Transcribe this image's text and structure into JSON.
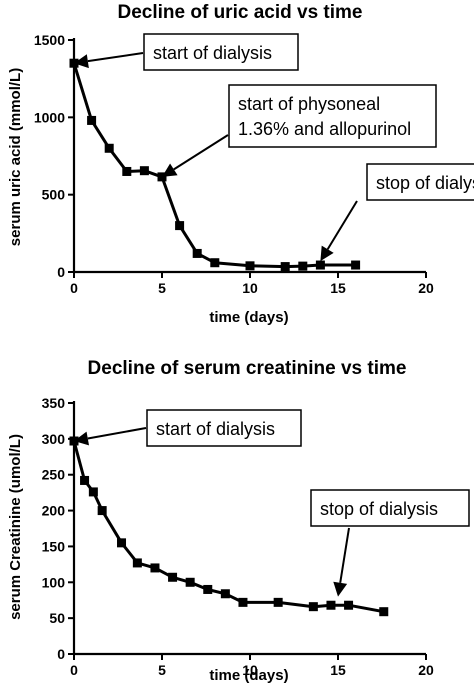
{
  "chart_data": [
    {
      "type": "line",
      "title": "Decline of uric acid vs time",
      "xlabel": "time (days)",
      "ylabel": "serum uric acid (mmol/L)",
      "xlim": [
        0,
        20
      ],
      "ylim": [
        0,
        1500
      ],
      "x_ticks": [
        0,
        5,
        10,
        15,
        20
      ],
      "y_ticks": [
        0,
        500,
        1000,
        1500
      ],
      "grid": false,
      "series": [
        {
          "x": [
            0,
            1,
            2,
            3,
            4,
            5,
            6,
            7,
            8,
            10,
            12,
            13,
            14,
            16
          ],
          "y": [
            1350,
            980,
            800,
            650,
            655,
            615,
            300,
            120,
            60,
            40,
            35,
            38,
            45,
            45
          ]
        }
      ],
      "annotations": [
        {
          "lines": [
            "start of dialysis"
          ],
          "target_x": 0,
          "target_y": 1350
        },
        {
          "lines": [
            "start of physoneal",
            "1.36% and allopurinol"
          ],
          "target_x": 5,
          "target_y": 615
        },
        {
          "lines": [
            "stop of dialysis"
          ],
          "target_x": 14,
          "target_y": 70
        }
      ]
    },
    {
      "type": "line",
      "title": "Decline of serum creatinine vs time",
      "xlabel": "time (days)",
      "ylabel": "serum Creatinine (umol/L)",
      "xlim": [
        0,
        20
      ],
      "ylim": [
        0,
        350
      ],
      "x_ticks": [
        0,
        5,
        10,
        15,
        20
      ],
      "y_ticks": [
        0,
        50,
        100,
        150,
        200,
        250,
        300,
        350
      ],
      "grid": false,
      "series": [
        {
          "x": [
            0,
            0.6,
            1.1,
            1.6,
            2.7,
            3.6,
            4.6,
            5.6,
            6.6,
            7.6,
            8.6,
            9.6,
            11.6,
            13.6,
            14.6,
            15.6,
            17.6
          ],
          "y": [
            297,
            242,
            226,
            200,
            155,
            127,
            120,
            107,
            100,
            90,
            84,
            72,
            72,
            66,
            68,
            68,
            59
          ]
        }
      ],
      "annotations": [
        {
          "lines": [
            "start of dialysis"
          ],
          "target_x": 0,
          "target_y": 297
        },
        {
          "lines": [
            "stop of dialysis"
          ],
          "target_x": 15,
          "target_y": 80
        }
      ]
    }
  ]
}
